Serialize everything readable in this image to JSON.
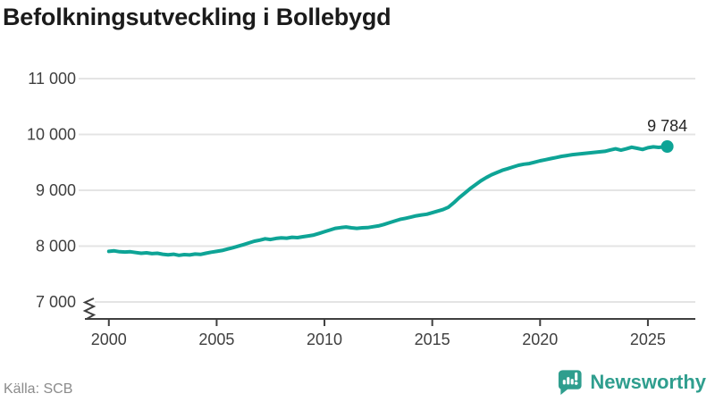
{
  "title": "Befolkningsutveckling i Bollebygd",
  "source": "Källa: SCB",
  "branding": {
    "name": "Newsworthy",
    "color": "#2f9e8e"
  },
  "colors": {
    "line": "#0ea496",
    "grid": "#e4e4e4",
    "axis": "#3f3f3f",
    "title": "#1b1b1b",
    "tick_label": "#3f3f3f",
    "source_text": "#8b8b8b",
    "end_label": "#252525"
  },
  "chart_data": {
    "type": "line",
    "title": "Befolkningsutveckling i Bollebygd",
    "xlabel": "",
    "ylabel": "",
    "grid": "horizontal",
    "legend": "none",
    "axis_break": true,
    "xlim": [
      1998.6,
      2027.2
    ],
    "ylim": [
      7000,
      11000
    ],
    "x_ticks": [
      2000,
      2005,
      2010,
      2015,
      2020,
      2025
    ],
    "x_tick_labels": [
      "2000",
      "2005",
      "2010",
      "2015",
      "2020",
      "2025"
    ],
    "y_ticks": [
      7000,
      8000,
      9000,
      10000,
      11000
    ],
    "y_tick_labels": [
      "7 000",
      "8 000",
      "9 000",
      "10 000",
      "11 000"
    ],
    "end_value": 9784,
    "end_label": "9 784",
    "series": [
      {
        "name": "Befolkning",
        "points": [
          [
            2000.0,
            7905
          ],
          [
            2000.25,
            7915
          ],
          [
            2000.5,
            7900
          ],
          [
            2000.75,
            7895
          ],
          [
            2001.0,
            7900
          ],
          [
            2001.25,
            7885
          ],
          [
            2001.5,
            7872
          ],
          [
            2001.75,
            7880
          ],
          [
            2002.0,
            7865
          ],
          [
            2002.25,
            7872
          ],
          [
            2002.5,
            7855
          ],
          [
            2002.75,
            7845
          ],
          [
            2003.0,
            7855
          ],
          [
            2003.25,
            7835
          ],
          [
            2003.5,
            7848
          ],
          [
            2003.75,
            7842
          ],
          [
            2004.0,
            7858
          ],
          [
            2004.25,
            7852
          ],
          [
            2004.5,
            7872
          ],
          [
            2004.75,
            7892
          ],
          [
            2005.0,
            7905
          ],
          [
            2005.25,
            7922
          ],
          [
            2005.5,
            7948
          ],
          [
            2005.75,
            7972
          ],
          [
            2006.0,
            7998
          ],
          [
            2006.25,
            8028
          ],
          [
            2006.5,
            8058
          ],
          [
            2006.75,
            8088
          ],
          [
            2007.0,
            8108
          ],
          [
            2007.25,
            8132
          ],
          [
            2007.5,
            8118
          ],
          [
            2007.75,
            8138
          ],
          [
            2008.0,
            8148
          ],
          [
            2008.25,
            8142
          ],
          [
            2008.5,
            8158
          ],
          [
            2008.75,
            8152
          ],
          [
            2009.0,
            8168
          ],
          [
            2009.25,
            8182
          ],
          [
            2009.5,
            8198
          ],
          [
            2009.75,
            8228
          ],
          [
            2010.0,
            8258
          ],
          [
            2010.25,
            8288
          ],
          [
            2010.5,
            8318
          ],
          [
            2010.75,
            8332
          ],
          [
            2011.0,
            8342
          ],
          [
            2011.25,
            8328
          ],
          [
            2011.5,
            8318
          ],
          [
            2011.75,
            8328
          ],
          [
            2012.0,
            8332
          ],
          [
            2012.25,
            8348
          ],
          [
            2012.5,
            8362
          ],
          [
            2012.75,
            8388
          ],
          [
            2013.0,
            8418
          ],
          [
            2013.25,
            8448
          ],
          [
            2013.5,
            8478
          ],
          [
            2013.75,
            8498
          ],
          [
            2014.0,
            8518
          ],
          [
            2014.25,
            8542
          ],
          [
            2014.5,
            8558
          ],
          [
            2014.75,
            8572
          ],
          [
            2015.0,
            8598
          ],
          [
            2015.25,
            8628
          ],
          [
            2015.5,
            8655
          ],
          [
            2015.75,
            8698
          ],
          [
            2016.0,
            8778
          ],
          [
            2016.25,
            8868
          ],
          [
            2016.5,
            8948
          ],
          [
            2016.75,
            9028
          ],
          [
            2017.0,
            9098
          ],
          [
            2017.25,
            9168
          ],
          [
            2017.5,
            9228
          ],
          [
            2017.75,
            9278
          ],
          [
            2018.0,
            9318
          ],
          [
            2018.25,
            9358
          ],
          [
            2018.5,
            9388
          ],
          [
            2018.75,
            9418
          ],
          [
            2019.0,
            9448
          ],
          [
            2019.25,
            9468
          ],
          [
            2019.5,
            9478
          ],
          [
            2019.75,
            9502
          ],
          [
            2020.0,
            9528
          ],
          [
            2020.25,
            9548
          ],
          [
            2020.5,
            9568
          ],
          [
            2020.75,
            9588
          ],
          [
            2021.0,
            9608
          ],
          [
            2021.25,
            9622
          ],
          [
            2021.5,
            9638
          ],
          [
            2021.75,
            9648
          ],
          [
            2022.0,
            9658
          ],
          [
            2022.25,
            9668
          ],
          [
            2022.5,
            9678
          ],
          [
            2022.75,
            9688
          ],
          [
            2023.0,
            9698
          ],
          [
            2023.25,
            9722
          ],
          [
            2023.5,
            9742
          ],
          [
            2023.75,
            9718
          ],
          [
            2024.0,
            9742
          ],
          [
            2024.25,
            9772
          ],
          [
            2024.5,
            9752
          ],
          [
            2024.75,
            9732
          ],
          [
            2025.0,
            9762
          ],
          [
            2025.25,
            9778
          ],
          [
            2025.5,
            9768
          ],
          [
            2025.9,
            9784
          ]
        ]
      }
    ]
  }
}
